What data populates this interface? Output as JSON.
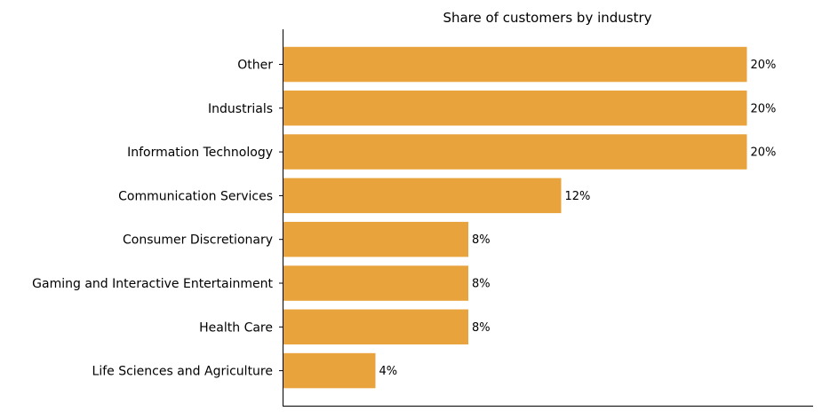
{
  "chart_data": {
    "type": "bar",
    "orientation": "horizontal",
    "title": "Share of customers by industry",
    "xlabel": "",
    "ylabel": "",
    "categories": [
      "Other",
      "Industrials",
      "Information Technology",
      "Communication Services",
      "Consumer Discretionary",
      "Gaming and Interactive Entertainment",
      "Health Care",
      "Life Sciences and Agriculture"
    ],
    "values": [
      20,
      20,
      20,
      12,
      8,
      8,
      8,
      4
    ],
    "value_labels": [
      "20%",
      "20%",
      "20%",
      "12%",
      "8%",
      "8%",
      "8%",
      "4%"
    ],
    "unit": "%",
    "xlim": [
      0,
      22.85
    ],
    "grid": false,
    "legend": "none",
    "x_axis_ticks_visible": false,
    "bar_color": "#E8A33C",
    "axis_color": "#000000"
  }
}
